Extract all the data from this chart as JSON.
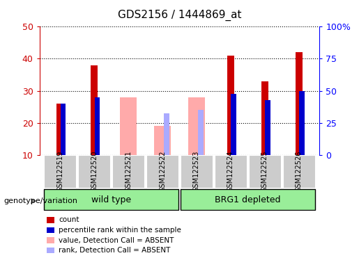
{
  "title": "GDS2156 / 1444869_at",
  "samples": [
    "GSM122519",
    "GSM122520",
    "GSM122521",
    "GSM122522",
    "GSM122523",
    "GSM122524",
    "GSM122525",
    "GSM122526"
  ],
  "count_values": [
    26,
    38,
    null,
    null,
    null,
    41,
    33,
    42
  ],
  "percentile_rank": [
    26,
    28,
    null,
    null,
    null,
    29,
    27,
    30
  ],
  "absent_value": [
    null,
    null,
    28,
    19,
    28,
    null,
    null,
    null
  ],
  "absent_rank": [
    null,
    null,
    null,
    23,
    24,
    null,
    null,
    null
  ],
  "ylim": [
    10,
    50
  ],
  "yticks": [
    10,
    20,
    30,
    40,
    50
  ],
  "right_tick_pct": [
    0,
    25,
    50,
    75,
    100
  ],
  "right_tick_labels": [
    "0",
    "25",
    "50",
    "75",
    "100%"
  ],
  "genotype_groups": [
    {
      "label": "wild type",
      "start": 0,
      "end": 4
    },
    {
      "label": "BRG1 depleted",
      "start": 4,
      "end": 8
    }
  ],
  "colors": {
    "count": "#cc0000",
    "percentile_rank": "#0000cc",
    "absent_value": "#ffaaaa",
    "absent_rank": "#aaaaff",
    "tick_bg": "#cccccc",
    "group_bg": "#99ee99"
  },
  "bar_width": 0.4,
  "legend_items": [
    {
      "color": "#cc0000",
      "label": "count"
    },
    {
      "color": "#0000cc",
      "label": "percentile rank within the sample"
    },
    {
      "color": "#ffaaaa",
      "label": "value, Detection Call = ABSENT"
    },
    {
      "color": "#aaaaff",
      "label": "rank, Detection Call = ABSENT"
    }
  ],
  "genotype_label": "genotype/variation"
}
